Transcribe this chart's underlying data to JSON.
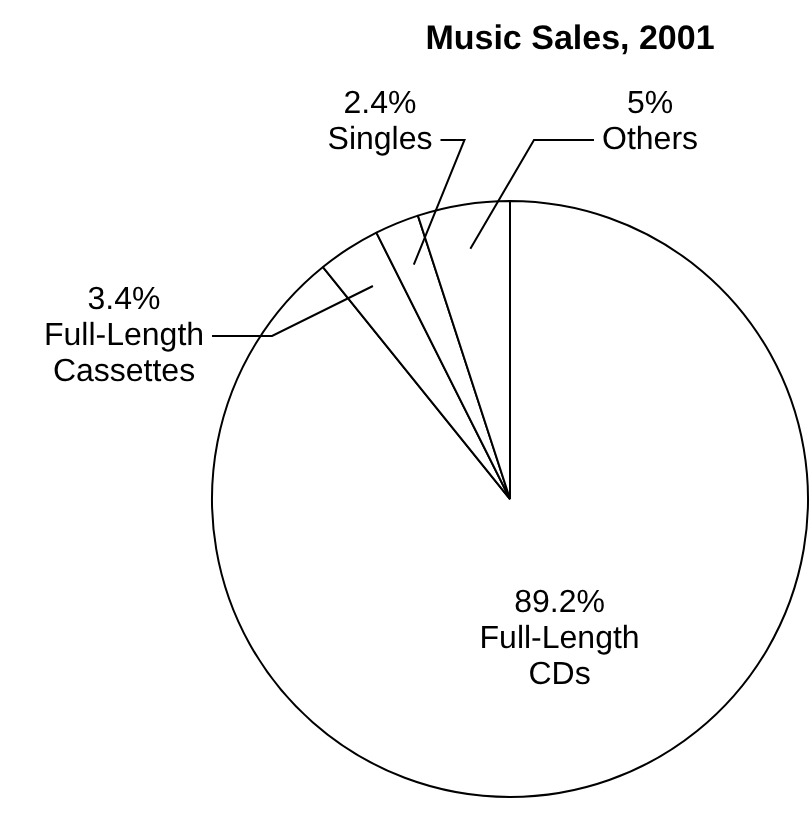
{
  "chart_data": {
    "type": "pie",
    "title": "Music Sales, 2001",
    "categories": [
      "Full-Length CDs",
      "Full-Length Cassettes",
      "Singles",
      "Others"
    ],
    "values": [
      89.2,
      3.4,
      2.4,
      5
    ],
    "value_labels": [
      "89.2%",
      "3.4%",
      "2.4%",
      "5%"
    ],
    "colors": [
      "#ffffff",
      "#ffffff",
      "#ffffff",
      "#ffffff"
    ],
    "legend": false
  }
}
